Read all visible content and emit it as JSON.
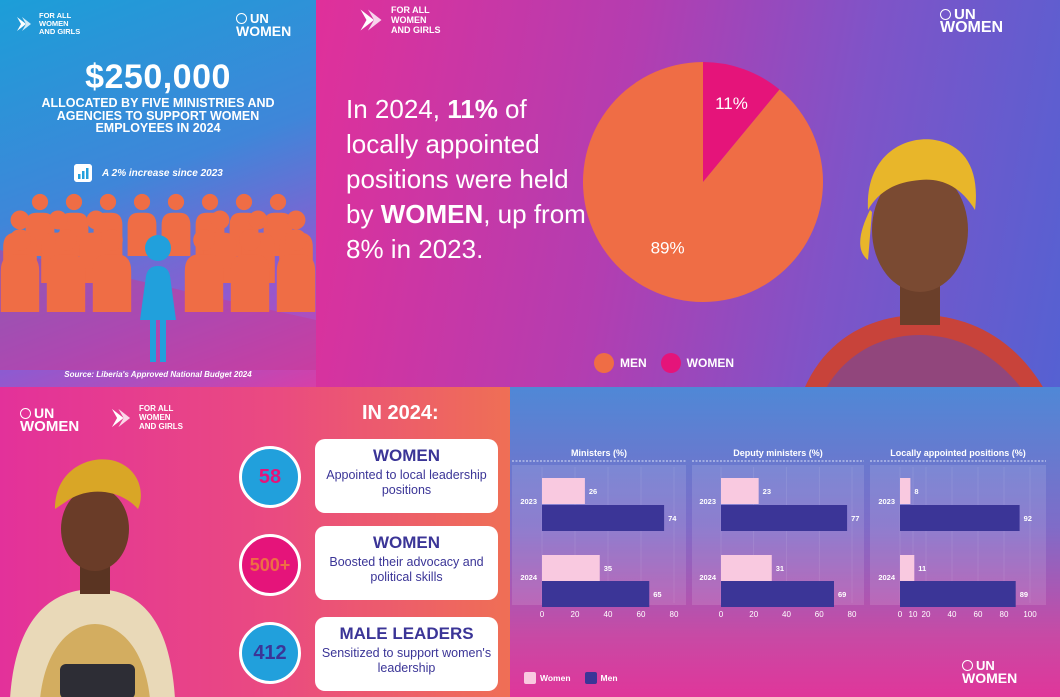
{
  "brand": {
    "initiative_lines": [
      "FOR ALL",
      "WOMEN",
      "AND GIRLS"
    ],
    "un_label": "UN",
    "women_label": "WOMEN"
  },
  "colors": {
    "orange": "#ef6d45",
    "pink": "#e5147a",
    "blue": "#21a0dc",
    "navy": "#3b3597",
    "light_pink": "#f9c9e0"
  },
  "panel1": {
    "amount": "$250,000",
    "description": "ALLOCATED BY FIVE MINISTRIES AND AGENCIES TO SUPPORT WOMEN EMPLOYEES IN 2024",
    "increase_icon": "bar-chart-up-icon",
    "increase": "A 2% increase since 2023",
    "source": "Source: Liberia's Approved National Budget 2024"
  },
  "panel2": {
    "text_parts": [
      "In 2024, ",
      "11%",
      " of locally appointed positions were held by ",
      "WOMEN",
      ", up from 8% in 2023."
    ],
    "legend": [
      "MEN",
      "WOMEN"
    ]
  },
  "panel3": {
    "heading": "IN 2024:",
    "items": [
      {
        "value": "58",
        "title": "WOMEN",
        "desc": "Appointed to local leadership positions"
      },
      {
        "value": "500+",
        "title": "WOMEN",
        "desc": "Boosted their advocacy and political skills"
      },
      {
        "value": "412",
        "title": "MALE LEADERS",
        "desc": "Sensitized to support women's leadership"
      }
    ]
  },
  "chart_data": [
    {
      "type": "pie",
      "labels": [
        "MEN",
        "WOMEN"
      ],
      "values": [
        89,
        11
      ],
      "value_labels": [
        "89%",
        "11%"
      ],
      "colors": [
        "#ef6d45",
        "#e5147a"
      ],
      "legend": "bottom"
    },
    {
      "type": "bar",
      "orientation": "horizontal",
      "title": "Ministers (%)",
      "categories": [
        "2023",
        "2024"
      ],
      "series": [
        {
          "name": "Women",
          "values": [
            26,
            35
          ]
        },
        {
          "name": "Men",
          "values": [
            74,
            65
          ]
        }
      ],
      "xlim": [
        0,
        80
      ],
      "ticks": [
        0,
        20,
        40,
        60,
        80
      ]
    },
    {
      "type": "bar",
      "orientation": "horizontal",
      "title": "Deputy ministers (%)",
      "categories": [
        "2023",
        "2024"
      ],
      "series": [
        {
          "name": "Women",
          "values": [
            23,
            31
          ]
        },
        {
          "name": "Men",
          "values": [
            77,
            69
          ]
        }
      ],
      "xlim": [
        0,
        80
      ],
      "ticks": [
        0,
        20,
        40,
        60,
        80
      ]
    },
    {
      "type": "bar",
      "orientation": "horizontal",
      "title": "Locally appointed positions (%)",
      "categories": [
        "2023",
        "2024"
      ],
      "series": [
        {
          "name": "Women",
          "values": [
            8,
            11
          ]
        },
        {
          "name": "Men",
          "values": [
            92,
            89
          ]
        }
      ],
      "xlim": [
        0,
        100
      ],
      "ticks": [
        0,
        10,
        20,
        40,
        60,
        80,
        100
      ]
    }
  ],
  "bar_legend": [
    "Women",
    "Men"
  ]
}
